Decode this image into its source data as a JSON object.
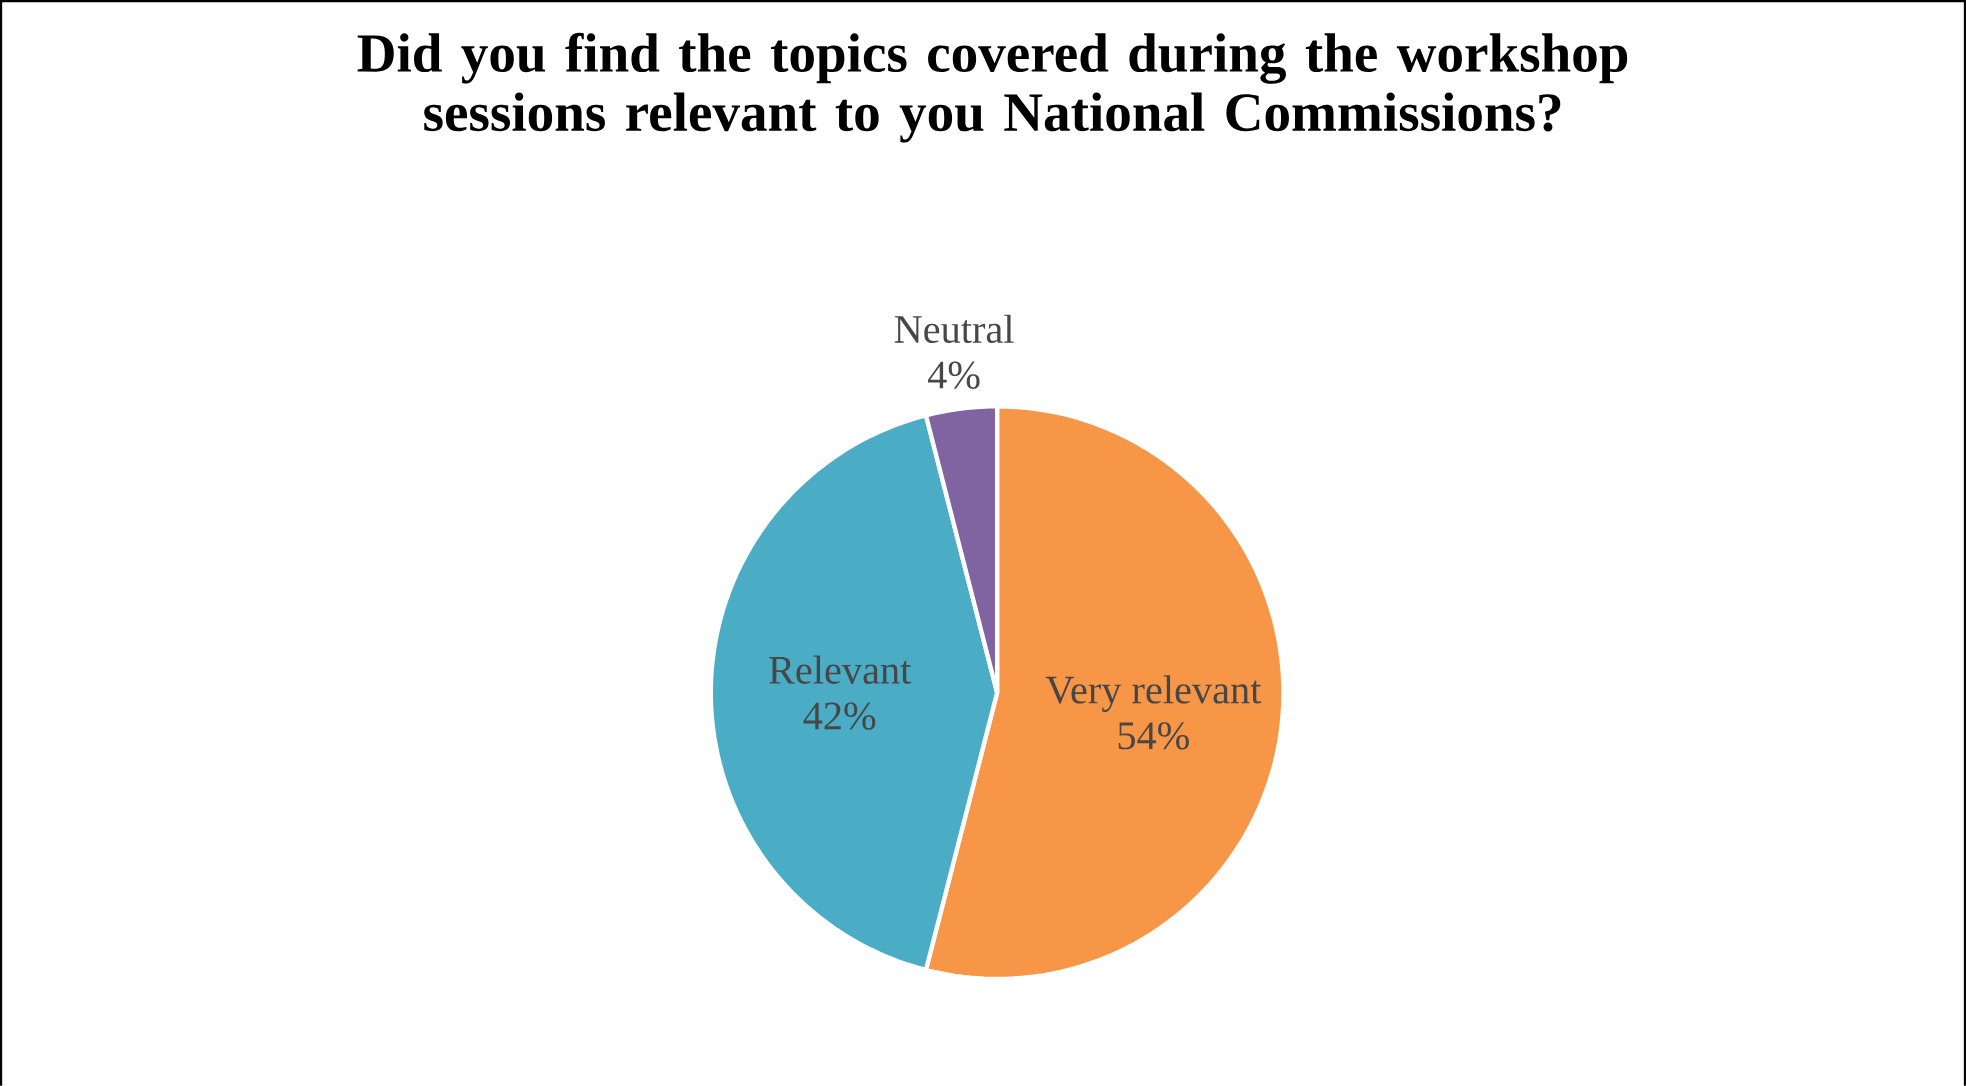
{
  "chart_data": {
    "type": "pie",
    "title": "Did you find the topics covered during the workshop sessions relevant to you National Commissions?",
    "categories": [
      "Very relevant",
      "Relevant",
      "Neutral"
    ],
    "values": [
      54,
      42,
      4
    ],
    "value_labels": [
      "54%",
      "42%",
      "4%"
    ],
    "colors": [
      "#f79646",
      "#4bacc6",
      "#8064a2"
    ]
  }
}
